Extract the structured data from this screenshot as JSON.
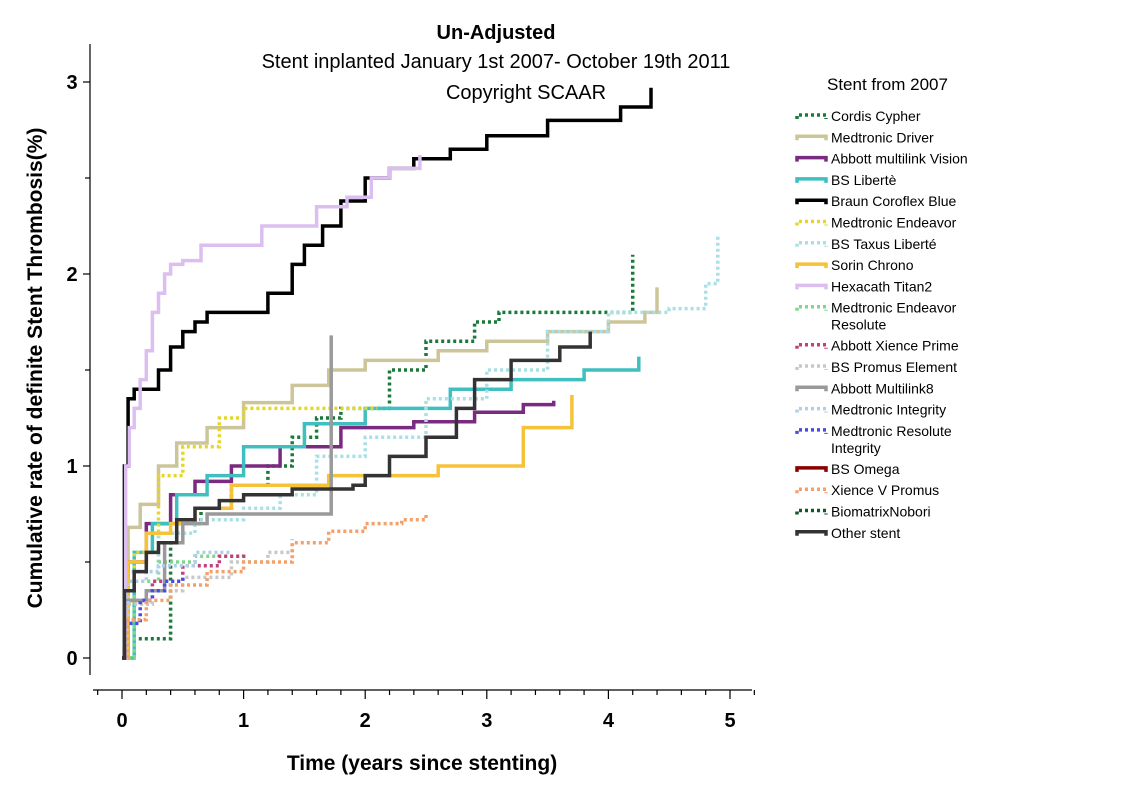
{
  "chart_data": {
    "type": "line",
    "title": "Un-Adjusted",
    "subtitle": "Stent inplanted January 1st 2007- October 19th 2011",
    "copyright": "Copyright SCAAR",
    "xlabel": "Time (years since stenting)",
    "ylabel": "Cumulative rate of definite Stent Thrombosis(%)",
    "xlim": [
      -0.25,
      5.2
    ],
    "ylim": [
      -0.15,
      3.15
    ],
    "xticks": [
      0,
      1,
      2,
      3,
      4,
      5
    ],
    "yticks": [
      0,
      1,
      2,
      3
    ],
    "step": true,
    "grid": false,
    "legend_title": "Stent from 2007",
    "legend_position": "right",
    "series": [
      {
        "name": "Cordis Cypher",
        "color": "#1a7a3a",
        "dash": "dotted",
        "x": [
          0,
          0.03,
          0.4,
          0.45,
          0.65,
          0.9,
          1.2,
          1.4,
          1.6,
          1.8,
          2.2,
          2.5,
          2.9,
          3.1,
          3.3,
          4.2,
          4.2
        ],
        "y": [
          0,
          0.1,
          0.6,
          0.7,
          0.78,
          0.9,
          1.0,
          1.15,
          1.25,
          1.3,
          1.5,
          1.65,
          1.75,
          1.8,
          1.8,
          1.9,
          2.1
        ]
      },
      {
        "name": "Medtronic Driver",
        "color": "#cdc59a",
        "dash": "solid",
        "x": [
          0,
          0.05,
          0.15,
          0.3,
          0.45,
          0.7,
          1.0,
          1.4,
          1.7,
          2.0,
          2.6,
          3.0,
          3.5,
          4.0,
          4.3,
          4.4
        ],
        "y": [
          0,
          0.68,
          0.8,
          1.0,
          1.12,
          1.2,
          1.33,
          1.42,
          1.5,
          1.55,
          1.6,
          1.65,
          1.7,
          1.75,
          1.8,
          1.93
        ]
      },
      {
        "name": "Abbott multilink Vision",
        "color": "#7a2a80",
        "dash": "solid",
        "x": [
          0,
          0.05,
          0.2,
          0.4,
          0.6,
          0.9,
          1.3,
          1.8,
          2.4,
          2.9,
          3.3,
          3.55
        ],
        "y": [
          0,
          0.5,
          0.7,
          0.85,
          0.92,
          1.0,
          1.1,
          1.2,
          1.23,
          1.28,
          1.32,
          1.34
        ]
      },
      {
        "name": "BS Libertè",
        "color": "#3fbfc0",
        "dash": "solid",
        "x": [
          0,
          0.1,
          0.25,
          0.45,
          0.7,
          1.0,
          1.5,
          2.0,
          2.7,
          3.2,
          3.8,
          4.25
        ],
        "y": [
          0,
          0.55,
          0.7,
          0.85,
          0.95,
          1.1,
          1.22,
          1.3,
          1.4,
          1.45,
          1.5,
          1.57
        ]
      },
      {
        "name": "Braun Coroflex Blue",
        "color": "#000000",
        "dash": "solid",
        "x": [
          0,
          0.02,
          0.05,
          0.1,
          0.3,
          0.4,
          0.5,
          0.6,
          0.7,
          1.0,
          1.2,
          1.4,
          1.5,
          1.65,
          1.8,
          2.0,
          2.2,
          2.4,
          2.7,
          3.0,
          3.5,
          4.1,
          4.35
        ],
        "y": [
          0,
          1.0,
          1.35,
          1.4,
          1.5,
          1.62,
          1.7,
          1.75,
          1.8,
          1.8,
          1.9,
          2.05,
          2.15,
          2.25,
          2.38,
          2.5,
          2.55,
          2.6,
          2.65,
          2.72,
          2.8,
          2.87,
          2.97
        ]
      },
      {
        "name": "Medtronic Endeavor",
        "color": "#e6d62a",
        "dash": "dotted",
        "x": [
          0,
          0.1,
          0.3,
          0.5,
          0.8,
          1.0,
          1.5,
          2.1
        ],
        "y": [
          0,
          0.55,
          0.95,
          1.1,
          1.25,
          1.3,
          1.3,
          1.3
        ]
      },
      {
        "name": "BS Taxus Liberté",
        "color": "#a8e0e6",
        "dash": "dotted",
        "x": [
          0,
          0.05,
          0.3,
          0.6,
          1.0,
          1.3,
          1.6,
          2.0,
          2.5,
          3.0,
          3.5,
          4.0,
          4.5,
          4.8,
          4.9
        ],
        "y": [
          0,
          0.45,
          0.65,
          0.72,
          0.78,
          0.85,
          1.05,
          1.15,
          1.35,
          1.5,
          1.7,
          1.8,
          1.82,
          1.95,
          2.2
        ]
      },
      {
        "name": "Sorin Chrono",
        "color": "#f6c23a",
        "dash": "solid",
        "x": [
          0,
          0.05,
          0.2,
          0.4,
          0.6,
          0.9,
          1.2,
          1.7,
          2.6,
          3.3,
          3.7
        ],
        "y": [
          0,
          0.5,
          0.65,
          0.7,
          0.78,
          0.9,
          0.9,
          0.95,
          1.0,
          1.2,
          1.37
        ]
      },
      {
        "name": "Hexacath Titan2",
        "color": "#dcbff0",
        "dash": "solid",
        "x": [
          0,
          0.03,
          0.06,
          0.1,
          0.15,
          0.2,
          0.25,
          0.3,
          0.35,
          0.4,
          0.5,
          0.65,
          0.9,
          1.15,
          1.6,
          1.85,
          2.05,
          2.2,
          2.45
        ],
        "y": [
          0,
          1.0,
          1.2,
          1.3,
          1.45,
          1.6,
          1.8,
          1.9,
          2.0,
          2.05,
          2.07,
          2.15,
          2.15,
          2.25,
          2.35,
          2.4,
          2.5,
          2.55,
          2.62
        ]
      },
      {
        "name": "Medtronic Endeavor Resolute",
        "color": "#7fd88c",
        "dash": "dotted",
        "x": [
          0,
          0.1,
          0.3,
          0.6,
          1.0
        ],
        "y": [
          0,
          0.4,
          0.5,
          0.53,
          0.55
        ]
      },
      {
        "name": "Abbott Xience Prime",
        "color": "#c0407a",
        "dash": "dotted",
        "x": [
          0,
          0.05,
          0.25,
          0.5,
          0.8,
          1.0
        ],
        "y": [
          0,
          0.3,
          0.4,
          0.48,
          0.53,
          0.55
        ]
      },
      {
        "name": "BS Promus Element",
        "color": "#c8c8c8",
        "dash": "dotted",
        "x": [
          0,
          0.05,
          0.25,
          0.5,
          0.9,
          1.2,
          1.4
        ],
        "y": [
          0,
          0.28,
          0.35,
          0.42,
          0.5,
          0.55,
          0.62
        ]
      },
      {
        "name": "Abbott Multilink8",
        "color": "#9a9a9a",
        "dash": "solid",
        "x": [
          0,
          0.02,
          0.2,
          0.35,
          0.5,
          0.7,
          1.0,
          1.72,
          1.72
        ],
        "y": [
          0,
          0.3,
          0.35,
          0.6,
          0.7,
          0.75,
          0.75,
          0.75,
          1.68
        ]
      },
      {
        "name": "Medtronic Integrity",
        "color": "#b0d0e6",
        "dash": "dotted",
        "x": [
          0,
          0.05,
          0.2,
          0.3,
          0.6,
          0.9
        ],
        "y": [
          0,
          0.4,
          0.45,
          0.48,
          0.55,
          0.55
        ]
      },
      {
        "name": "Medtronic Resolute Integrity",
        "color": "#4a4ae6",
        "dash": "dotted",
        "x": [
          0,
          0.02,
          0.15,
          0.25,
          0.35,
          0.5
        ],
        "y": [
          0,
          0.18,
          0.3,
          0.35,
          0.4,
          0.42
        ]
      },
      {
        "name": "BS Omega",
        "color": "#8b0000",
        "dash": "solid",
        "x": [
          0,
          0.02
        ],
        "y": [
          0,
          0.05
        ]
      },
      {
        "name": "Xience V Promus",
        "color": "#f4a06a",
        "dash": "dotted",
        "x": [
          0,
          0.05,
          0.2,
          0.4,
          0.7,
          1.0,
          1.4,
          1.7,
          2.0,
          2.3,
          2.5
        ],
        "y": [
          0,
          0.2,
          0.3,
          0.38,
          0.45,
          0.5,
          0.6,
          0.66,
          0.7,
          0.72,
          0.75
        ]
      },
      {
        "name": "BiomatrixNobori",
        "color": "#0a5a2a",
        "dash": "dotted",
        "x": [
          0,
          0.02
        ],
        "y": [
          0,
          0.1
        ]
      },
      {
        "name": "Other stent",
        "color": "#333333",
        "dash": "solid",
        "x": [
          0,
          0.02,
          0.1,
          0.2,
          0.3,
          0.45,
          0.6,
          0.8,
          1.0,
          1.4,
          1.9,
          2.0,
          2.2,
          2.5,
          2.75,
          2.9,
          3.2,
          3.6,
          3.85
        ],
        "y": [
          0,
          0.35,
          0.45,
          0.55,
          0.6,
          0.72,
          0.78,
          0.82,
          0.85,
          0.88,
          0.9,
          0.95,
          1.05,
          1.15,
          1.3,
          1.45,
          1.55,
          1.62,
          1.7
        ]
      }
    ]
  }
}
